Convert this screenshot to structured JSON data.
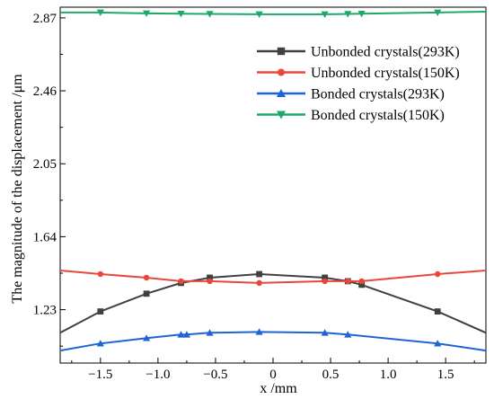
{
  "chart_data": {
    "type": "line",
    "title": "",
    "xlabel": "x /mm",
    "ylabel": "The magnitude of the displacement /μm",
    "xlim": [
      -1.85,
      1.85
    ],
    "ylim": [
      0.93,
      2.93
    ],
    "x_ticks": [
      -1.5,
      -1.0,
      -0.5,
      0.0,
      0.5,
      1.0,
      1.5
    ],
    "x_tick_labels": [
      "−1.5",
      "−1.0",
      "−0.5",
      "0",
      "0.5",
      "1.0",
      "1.5"
    ],
    "y_ticks": [
      1.23,
      1.64,
      2.05,
      2.46,
      2.87
    ],
    "y_tick_labels": [
      "1.23",
      "1.64",
      "2.05",
      "2.46",
      "2.87"
    ],
    "legend_position": "top-right",
    "grid": false,
    "series": [
      {
        "name": "Unbonded crystals(293K)",
        "color": "#404040",
        "marker": "square",
        "x": [
          -1.85,
          -1.5,
          -1.1,
          -0.8,
          -0.55,
          -0.12,
          0.45,
          0.65,
          0.77,
          1.43,
          1.85
        ],
        "y": [
          1.1,
          1.22,
          1.32,
          1.38,
          1.41,
          1.43,
          1.41,
          1.39,
          1.37,
          1.22,
          1.1
        ],
        "marker_x": [
          -1.5,
          -1.1,
          -0.8,
          -0.55,
          -0.12,
          0.45,
          0.65,
          0.77,
          1.43
        ]
      },
      {
        "name": "Unbonded crystals(150K)",
        "color": "#e8483c",
        "marker": "circle",
        "x": [
          -1.85,
          -1.5,
          -1.1,
          -0.8,
          -0.55,
          -0.12,
          0.45,
          0.65,
          0.77,
          1.43,
          1.85
        ],
        "y": [
          1.45,
          1.43,
          1.41,
          1.39,
          1.39,
          1.38,
          1.39,
          1.39,
          1.39,
          1.43,
          1.45
        ],
        "marker_x": [
          -1.5,
          -1.1,
          -0.8,
          -0.55,
          -0.12,
          0.45,
          0.65,
          0.77,
          1.43
        ]
      },
      {
        "name": "Bonded crystals(293K)",
        "color": "#1f64d4",
        "marker": "triangle-up",
        "x": [
          -1.85,
          -1.5,
          -1.1,
          -0.8,
          -0.75,
          -0.55,
          -0.12,
          0.45,
          0.65,
          1.43,
          1.85
        ],
        "y": [
          1.0,
          1.04,
          1.07,
          1.09,
          1.09,
          1.1,
          1.105,
          1.1,
          1.09,
          1.04,
          1.0
        ],
        "marker_x": [
          -1.5,
          -1.1,
          -0.8,
          -0.75,
          -0.55,
          -0.12,
          0.45,
          0.65,
          1.43
        ]
      },
      {
        "name": "Bonded crystals(150K)",
        "color": "#1fa86a",
        "marker": "triangle-down",
        "x": [
          -1.85,
          -1.5,
          -1.1,
          -0.8,
          -0.55,
          -0.12,
          0.45,
          0.65,
          0.77,
          1.43,
          1.85
        ],
        "y": [
          2.9,
          2.9,
          2.895,
          2.893,
          2.892,
          2.89,
          2.89,
          2.892,
          2.893,
          2.9,
          2.905
        ],
        "marker_x": [
          -1.5,
          -1.1,
          -0.8,
          -0.55,
          -0.12,
          0.45,
          0.65,
          0.77,
          1.43
        ]
      }
    ]
  }
}
